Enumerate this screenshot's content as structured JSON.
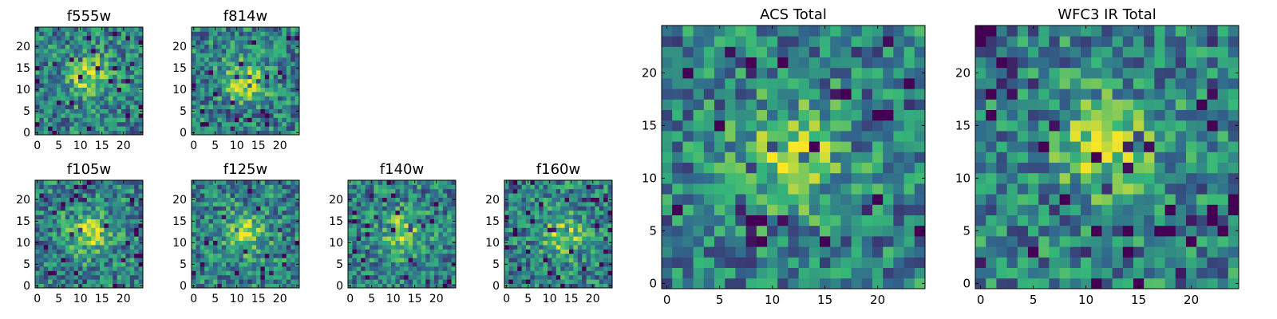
{
  "figure": {
    "colormap": [
      "#440154",
      "#31688e",
      "#35b779",
      "#fde725"
    ]
  },
  "chart_data": [
    {
      "type": "heatmap",
      "title": "f555w",
      "nx": 25,
      "ny": 25,
      "xlim": [
        -0.5,
        24.5
      ],
      "ylim": [
        -0.5,
        24.5
      ],
      "xticks": [
        0,
        5,
        10,
        15,
        20
      ],
      "yticks": [
        0,
        5,
        10,
        15,
        20
      ],
      "grid": false,
      "peak": [
        12,
        13
      ]
    },
    {
      "type": "heatmap",
      "title": "f814w",
      "nx": 25,
      "ny": 25,
      "xlim": [
        -0.5,
        24.5
      ],
      "ylim": [
        -0.5,
        24.5
      ],
      "xticks": [
        0,
        5,
        10,
        15,
        20
      ],
      "yticks": [
        0,
        5,
        10,
        15,
        20
      ],
      "grid": false,
      "peak": [
        12,
        12
      ]
    },
    {
      "type": "heatmap",
      "title": "f105w",
      "nx": 25,
      "ny": 25,
      "xlim": [
        -0.5,
        24.5
      ],
      "ylim": [
        -0.5,
        24.5
      ],
      "xticks": [
        0,
        5,
        10,
        15,
        20
      ],
      "yticks": [
        0,
        5,
        10,
        15,
        20
      ],
      "grid": false,
      "peak": [
        12,
        12
      ]
    },
    {
      "type": "heatmap",
      "title": "f125w",
      "nx": 25,
      "ny": 25,
      "xlim": [
        -0.5,
        24.5
      ],
      "ylim": [
        -0.5,
        24.5
      ],
      "xticks": [
        0,
        5,
        10,
        15,
        20
      ],
      "yticks": [
        0,
        5,
        10,
        15,
        20
      ],
      "grid": false,
      "peak": [
        12,
        12
      ]
    },
    {
      "type": "heatmap",
      "title": "f140w",
      "nx": 25,
      "ny": 25,
      "xlim": [
        -0.5,
        24.5
      ],
      "ylim": [
        -0.5,
        24.5
      ],
      "xticks": [
        0,
        5,
        10,
        15,
        20
      ],
      "yticks": [
        0,
        5,
        10,
        15,
        20
      ],
      "grid": false,
      "peak": [
        12,
        12
      ]
    },
    {
      "type": "heatmap",
      "title": "f160w",
      "nx": 25,
      "ny": 25,
      "xlim": [
        -0.5,
        24.5
      ],
      "ylim": [
        -0.5,
        24.5
      ],
      "xticks": [
        0,
        5,
        10,
        15,
        20
      ],
      "yticks": [
        0,
        5,
        10,
        15,
        20
      ],
      "grid": false,
      "peak": [
        13,
        12
      ]
    },
    {
      "type": "heatmap",
      "title": "ACS Total",
      "nx": 25,
      "ny": 25,
      "xlim": [
        -0.5,
        24.5
      ],
      "ylim": [
        -0.5,
        24.5
      ],
      "xticks": [
        0,
        5,
        10,
        15,
        20
      ],
      "yticks": [
        0,
        5,
        10,
        15,
        20
      ],
      "grid": false,
      "peak": [
        12,
        12
      ]
    },
    {
      "type": "heatmap",
      "title": "WFC3 IR Total",
      "nx": 25,
      "ny": 25,
      "xlim": [
        -0.5,
        24.5
      ],
      "ylim": [
        -0.5,
        24.5
      ],
      "xticks": [
        0,
        5,
        10,
        15,
        20
      ],
      "yticks": [
        0,
        5,
        10,
        15,
        20
      ],
      "grid": false,
      "peak": [
        12,
        13
      ]
    }
  ]
}
